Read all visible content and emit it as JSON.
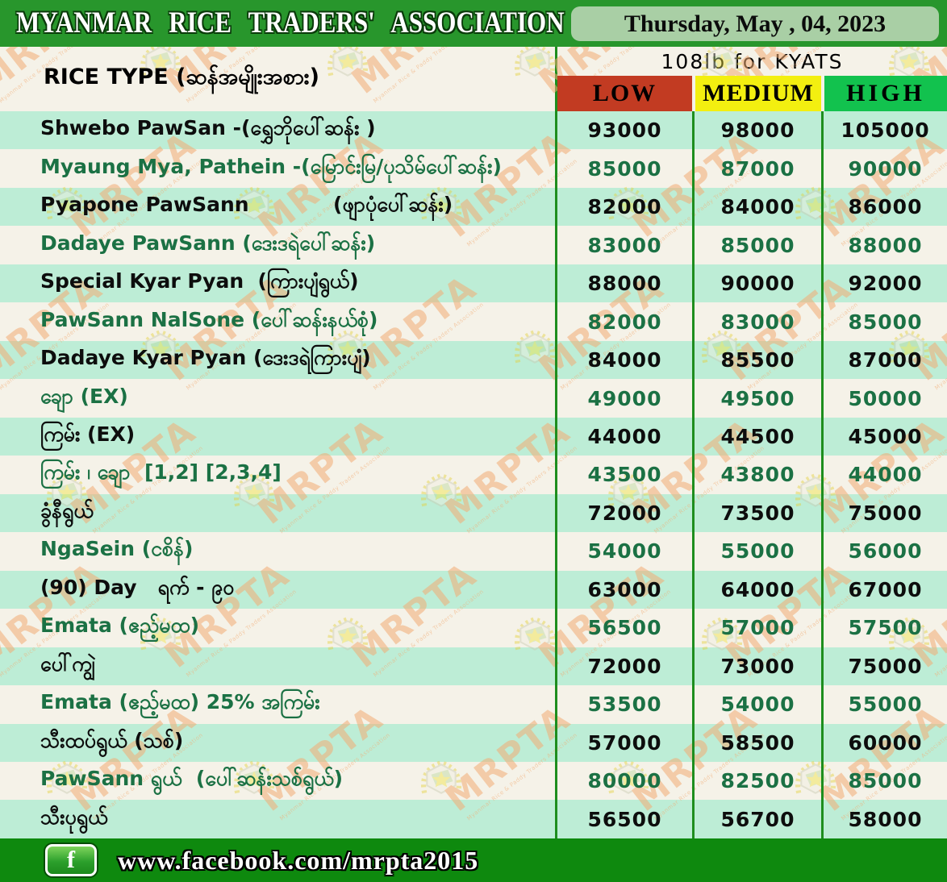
{
  "header": {
    "title": "MYANMAR RICE TRADERS' ASSOCIATION",
    "date": "Thursday, May , 04, 2023"
  },
  "table": {
    "rice_type_label": "RICE TYPE (ဆန်အမျိုးအစား)",
    "unit_label": "108lb for KYATS",
    "columns": [
      "LOW",
      "MEDIUM",
      "HIGH"
    ],
    "column_colors": {
      "low": "#c23b22",
      "medium": "#f3ef10",
      "high": "#12c24e"
    },
    "rows": [
      {
        "name": "Shwebo PawSan -(ရွှေဘိုပေါ်ဆန်း )",
        "low": "93000",
        "medium": "98000",
        "high": "105000"
      },
      {
        "name": "Myaung Mya, Pathein -(မြောင်းမြ/ပုသိမ်ပေါ်ဆန်း)",
        "low": "85000",
        "medium": "87000",
        "high": "90000"
      },
      {
        "name": "Pyapone PawSann            (ဖျာပုံပေါ်ဆန်း)",
        "low": "82000",
        "medium": "84000",
        "high": "86000"
      },
      {
        "name": "Dadaye PawSann (ဒေးဒရဲပေါ်ဆန်း)",
        "low": "83000",
        "medium": "85000",
        "high": "88000"
      },
      {
        "name": "Special Kyar Pyan  (ကြားပျံရွယ်)",
        "low": "88000",
        "medium": "90000",
        "high": "92000"
      },
      {
        "name": "PawSann NalSone (ပေါ်ဆန်းနယ်စုံ)",
        "low": "82000",
        "medium": "83000",
        "high": "85000"
      },
      {
        "name": "Dadaye Kyar Pyan (ဒေးဒရဲကြားပျံ)",
        "low": "84000",
        "medium": "85500",
        "high": "87000"
      },
      {
        "name": "ချော (EX)",
        "low": "49000",
        "medium": "49500",
        "high": "50000"
      },
      {
        "name": "ကြမ်း (EX)",
        "low": "44000",
        "medium": "44500",
        "high": "45000"
      },
      {
        "name": "ကြမ်း ၊ ချော  [1,2] [2,3,4]",
        "low": "43500",
        "medium": "43800",
        "high": "44000"
      },
      {
        "name": "ခွံနီရွယ်",
        "low": "72000",
        "medium": "73500",
        "high": "75000"
      },
      {
        "name": "NgaSein (ငစိန်)",
        "low": "54000",
        "medium": "55000",
        "high": "56000"
      },
      {
        "name": "(90) Day   ရက် - ၉၀",
        "low": "63000",
        "medium": "64000",
        "high": "67000"
      },
      {
        "name": "Emata (ဧည့်မထ)",
        "low": "56500",
        "medium": "57000",
        "high": "57500"
      },
      {
        "name": "ပေါ်ကျွဲ",
        "low": "72000",
        "medium": "73000",
        "high": "75000"
      },
      {
        "name": "Emata (ဧည့်မထ) 25% အကြမ်း",
        "low": "53500",
        "medium": "54000",
        "high": "55000"
      },
      {
        "name": "သီးထပ်ရွယ် (သစ်)",
        "low": "57000",
        "medium": "58500",
        "high": "60000"
      },
      {
        "name": "PawSann ရွယ်  (ပေါ်ဆန်းသစ်ရွယ်)",
        "low": "80000",
        "medium": "82500",
        "high": "85000"
      },
      {
        "name": "သီးပုရွယ်",
        "low": "56500",
        "medium": "56700",
        "high": "58000"
      }
    ]
  },
  "footer": {
    "facebook_url": "www.facebook.com/mrpta2015",
    "facebook_icon_glyph": "f"
  },
  "watermark": {
    "text": "MRPTA",
    "subtext": "Myanmar Rice & Paddy Traders Association",
    "color": "#f2ac74"
  }
}
